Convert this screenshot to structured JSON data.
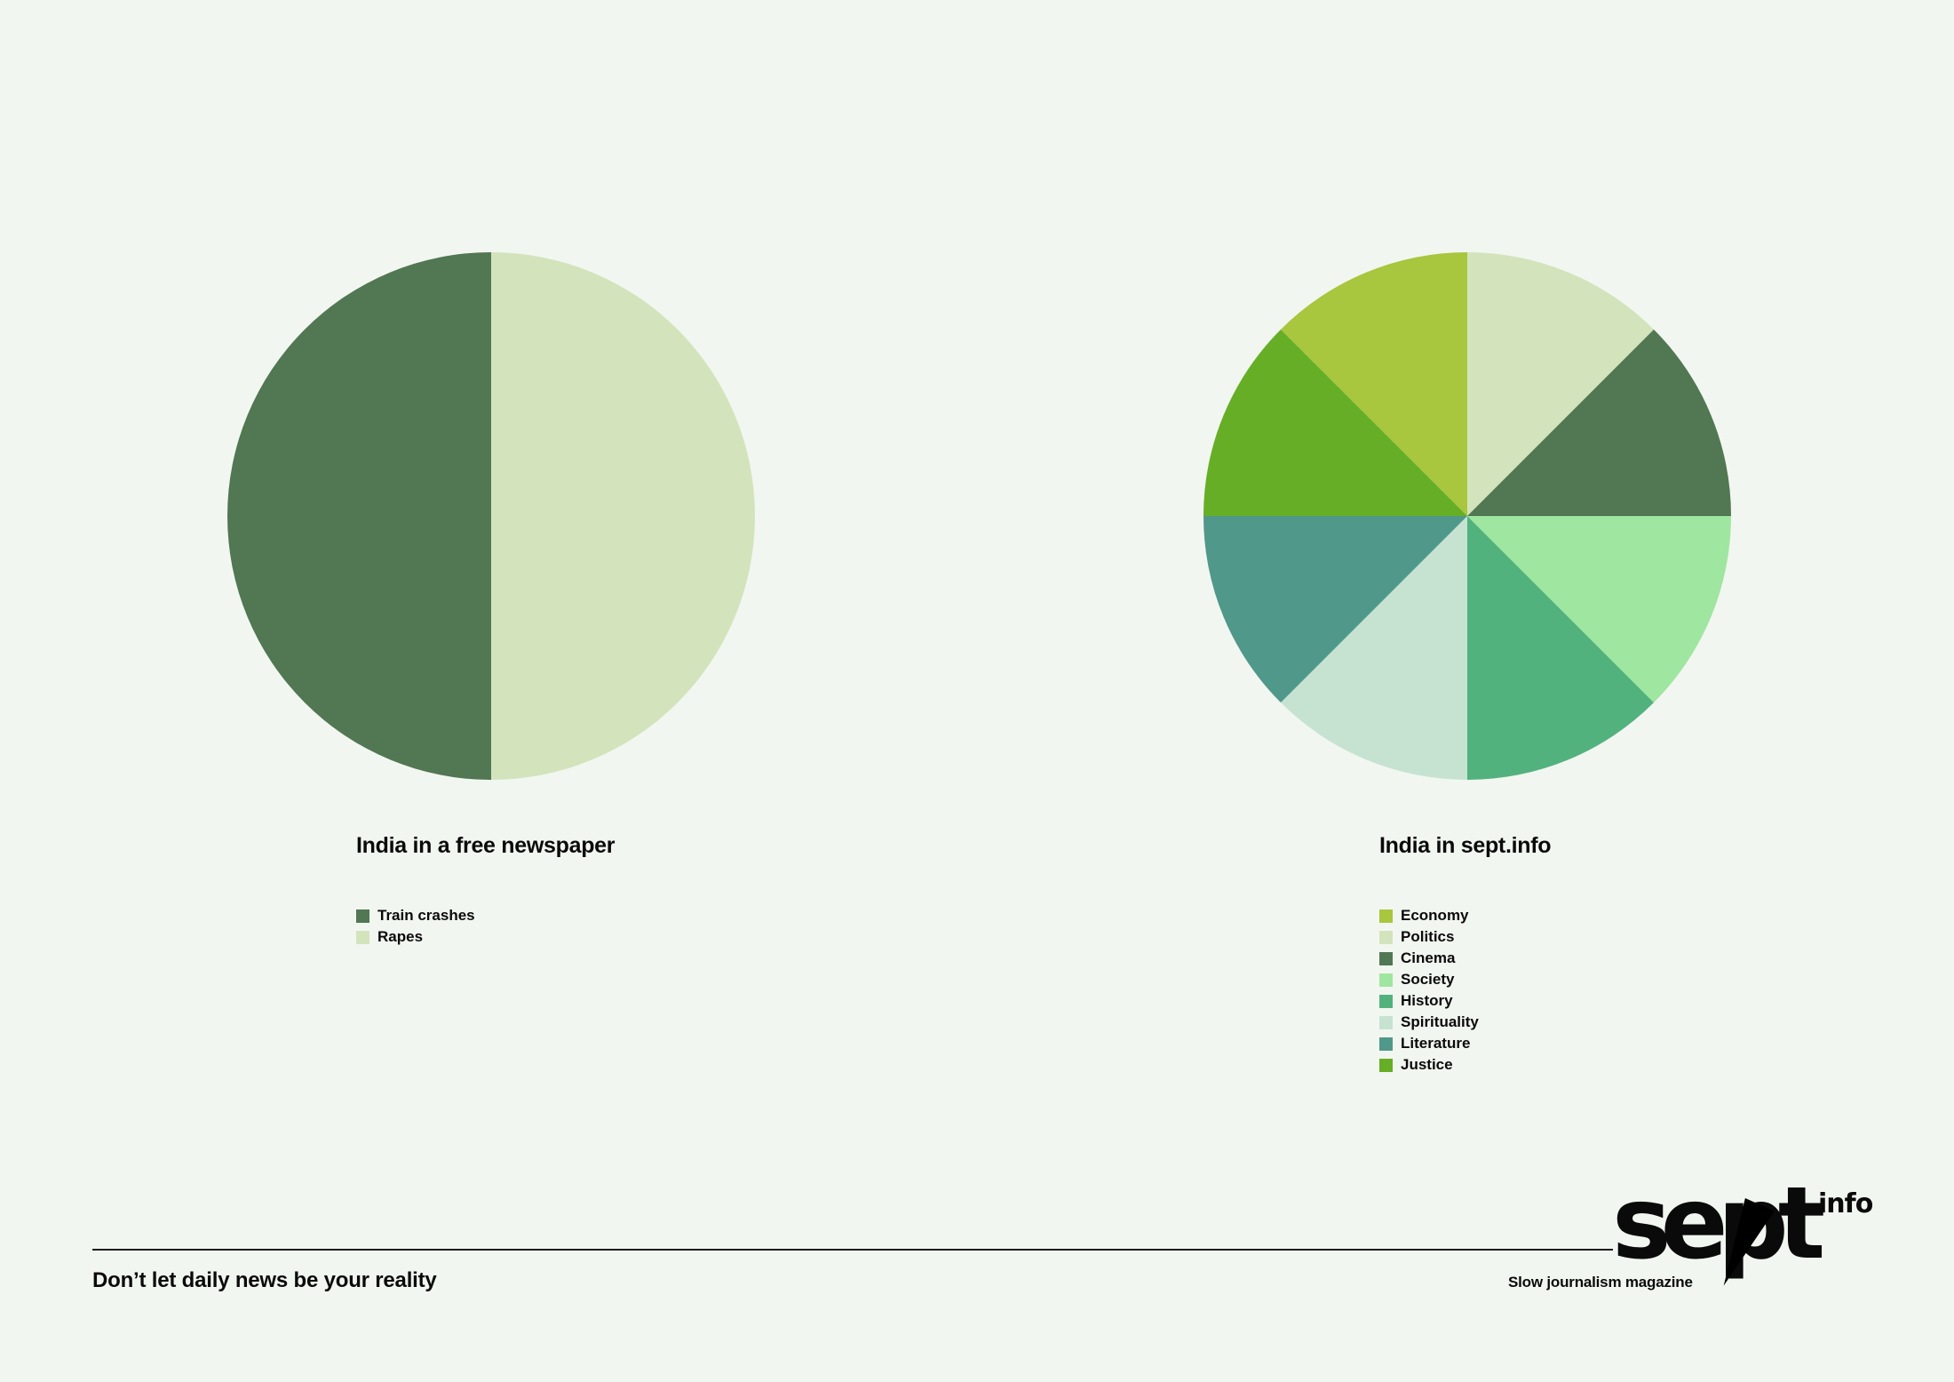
{
  "chart_data": [
    {
      "type": "pie",
      "title": "India in a free newspaper",
      "categories": [
        "Train crashes",
        "Rapes"
      ],
      "values": [
        50,
        50
      ],
      "colors": [
        "#517753",
        "#d3e4bd"
      ]
    },
    {
      "type": "pie",
      "title": "India in sept.info",
      "categories": [
        "Economy",
        "Politics",
        "Cinema",
        "Society",
        "History",
        "Spirituality",
        "Literature",
        "Justice"
      ],
      "values": [
        12.5,
        12.5,
        12.5,
        12.5,
        12.5,
        12.5,
        12.5,
        12.5
      ],
      "colors": [
        "#a8c63e",
        "#d3e4bd",
        "#517753",
        "#9fe6a0",
        "#52b27e",
        "#c6e3d2",
        "#509889",
        "#66ae26"
      ]
    }
  ],
  "footer": {
    "tagline": "Don’t let daily news be your reality",
    "brand_subtitle": "Slow journalism magazine",
    "logo_text": "sept",
    "logo_superscript": "info"
  }
}
